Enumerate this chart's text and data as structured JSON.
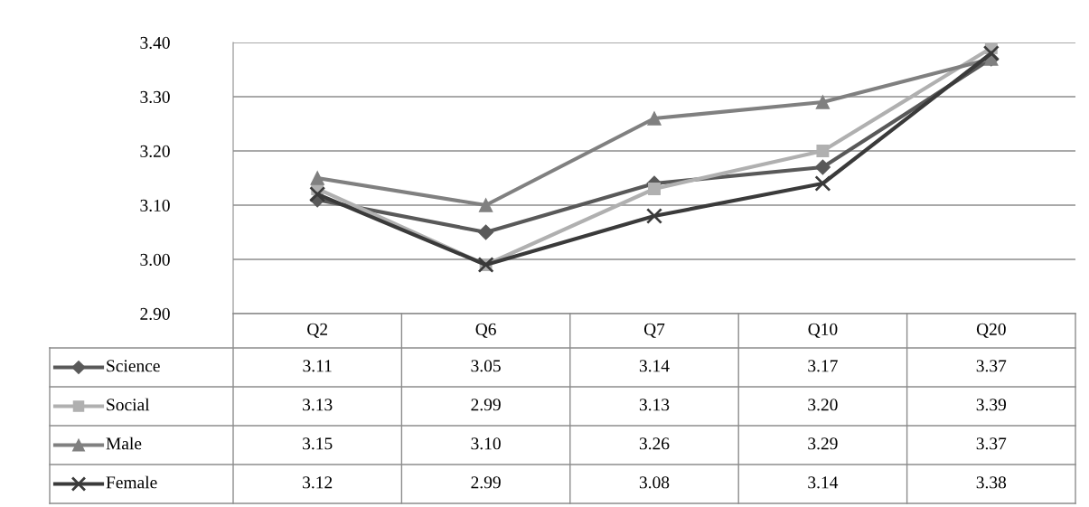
{
  "chart_data": {
    "type": "line",
    "categories": [
      "Q2",
      "Q6",
      "Q7",
      "Q10",
      "Q20"
    ],
    "ylim": [
      2.9,
      3.4
    ],
    "yticks": [
      {
        "value": 2.9,
        "label": "2.90"
      },
      {
        "value": 3.0,
        "label": "3.00"
      },
      {
        "value": 3.1,
        "label": "3.10"
      },
      {
        "value": 3.2,
        "label": "3.20"
      },
      {
        "value": 3.3,
        "label": "3.30"
      },
      {
        "value": 3.4,
        "label": "3.40"
      }
    ],
    "grid": "y",
    "legend": "bottom",
    "series": [
      {
        "name": "Science",
        "color": "#595959",
        "marker": "diamond",
        "values": [
          3.11,
          3.05,
          3.14,
          3.17,
          3.37
        ],
        "value_labels": [
          "3.11",
          "3.05",
          "3.14",
          "3.17",
          "3.37"
        ]
      },
      {
        "name": "Social",
        "color": "#b0b0b0",
        "marker": "square",
        "values": [
          3.13,
          2.99,
          3.13,
          3.2,
          3.39
        ],
        "value_labels": [
          "3.13",
          "2.99",
          "3.13",
          "3.20",
          "3.39"
        ]
      },
      {
        "name": "Male",
        "color": "#808080",
        "marker": "triangle",
        "values": [
          3.15,
          3.1,
          3.26,
          3.29,
          3.37
        ],
        "value_labels": [
          "3.15",
          "3.10",
          "3.26",
          "3.29",
          "3.37"
        ]
      },
      {
        "name": "Female",
        "color": "#3a3a3a",
        "marker": "cross",
        "values": [
          3.12,
          2.99,
          3.08,
          3.14,
          3.38
        ],
        "value_labels": [
          "3.12",
          "2.99",
          "3.08",
          "3.14",
          "3.38"
        ]
      }
    ]
  }
}
